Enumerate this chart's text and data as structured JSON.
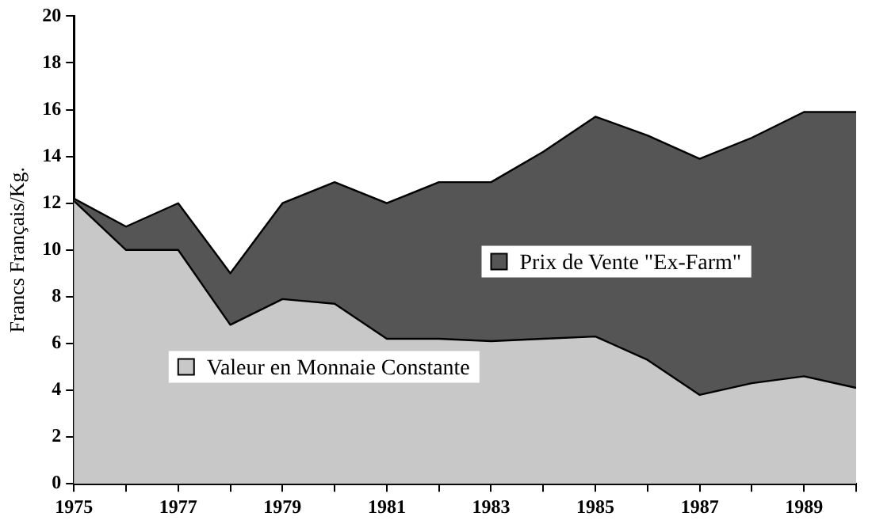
{
  "chart_data": {
    "type": "area",
    "ylabel": "Francs Français/Kg.",
    "x": [
      1975,
      1976,
      1977,
      1978,
      1979,
      1980,
      1981,
      1982,
      1983,
      1984,
      1985,
      1986,
      1987,
      1988,
      1989,
      1990
    ],
    "series": [
      {
        "name": "Prix de Vente \"Ex-Farm\"",
        "color": "#555555",
        "values": [
          12.2,
          11.0,
          12.0,
          9.0,
          12.0,
          12.9,
          12.0,
          12.9,
          12.9,
          14.2,
          15.7,
          14.9,
          13.9,
          14.8,
          15.9,
          15.9
        ]
      },
      {
        "name": "Valeur en Monnaie Constante",
        "color": "#c8c8c8",
        "values": [
          12.1,
          10.0,
          10.0,
          6.8,
          7.9,
          7.7,
          6.2,
          6.2,
          6.1,
          6.2,
          6.3,
          5.3,
          3.8,
          4.3,
          4.6,
          4.1
        ]
      }
    ],
    "xlim": [
      1975,
      1990
    ],
    "xticks": [
      1975,
      {
        "value": 1976,
        "label": null
      },
      1977,
      {
        "value": 1978,
        "label": null
      },
      1979,
      {
        "value": 1980,
        "label": null
      },
      1981,
      {
        "value": 1982,
        "label": null
      },
      1983,
      {
        "value": 1984,
        "label": null
      },
      1985,
      {
        "value": 1986,
        "label": null
      },
      1987,
      {
        "value": 1988,
        "label": null
      },
      1989,
      {
        "value": 1990,
        "label": null
      }
    ],
    "ylim": [
      0,
      20
    ],
    "yticks": [
      0,
      2,
      4,
      6,
      8,
      10,
      12,
      14,
      16,
      18,
      20
    ],
    "grid": false,
    "legend": "center"
  }
}
